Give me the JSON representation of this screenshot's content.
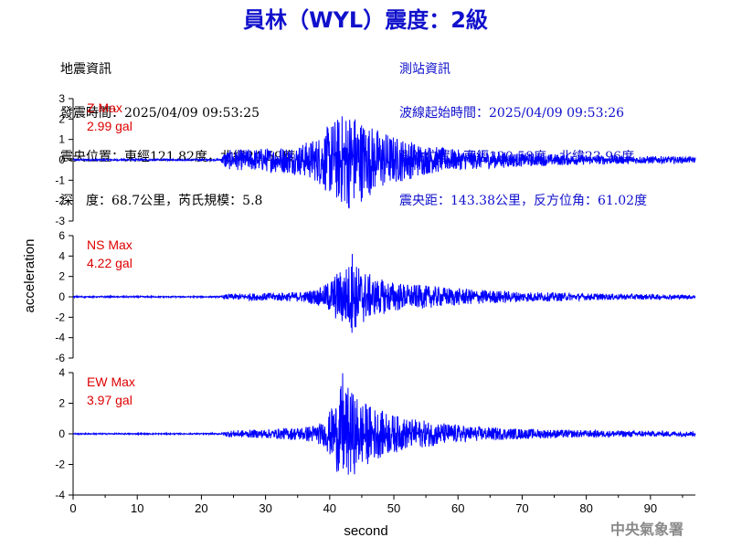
{
  "title": "員林（WYL）震度：2級",
  "earthquake": {
    "heading": "地震資訊",
    "origin_time": "發震時間：2025/04/09 09:53:25",
    "epicenter": "震央位置：東經121.82度，北緯24.59度",
    "depth_magnitude": "深　度：68.7公里，芮氏規模：5.8"
  },
  "station": {
    "heading": "測站資訊",
    "wave_start": "波線起始時間：2025/04/09 09:53:26",
    "location": "測站位置：東經120.58度，北緯23.96度",
    "distance_azimuth": "震央距：143.38公里，反方位角：61.02度"
  },
  "agency": "中央氣象署",
  "chart_data": {
    "type": "line",
    "xlabel": "second",
    "ylabel": "acceleration",
    "xlim": [
      0,
      97
    ],
    "xticks": [
      0,
      10,
      20,
      30,
      40,
      50,
      60,
      70,
      80,
      90
    ],
    "line_color": "#0000ff",
    "max_label_color": "#dd0000",
    "panels": [
      {
        "component": "Z",
        "max_label": "Z Max",
        "max_value": "2.99 gal",
        "ylim": [
          -3,
          3
        ],
        "yticks": [
          3,
          2,
          1,
          0,
          -1,
          -2,
          -3
        ],
        "envelope": [
          [
            0,
            0.05
          ],
          [
            20,
            0.05
          ],
          [
            23,
            0.05
          ],
          [
            23.6,
            0.55
          ],
          [
            30,
            0.7
          ],
          [
            35,
            0.85
          ],
          [
            38,
            1.3
          ],
          [
            40.5,
            2.3
          ],
          [
            43,
            2.99
          ],
          [
            46,
            2.1
          ],
          [
            50,
            1.4
          ],
          [
            55,
            0.85
          ],
          [
            60,
            0.6
          ],
          [
            70,
            0.4
          ],
          [
            80,
            0.28
          ],
          [
            97,
            0.18
          ]
        ]
      },
      {
        "component": "NS",
        "max_label": "NS Max",
        "max_value": "4.22 gal",
        "ylim": [
          -6,
          6
        ],
        "yticks": [
          6,
          4,
          2,
          0,
          -2,
          -4,
          -6
        ],
        "envelope": [
          [
            0,
            0.08
          ],
          [
            23,
            0.08
          ],
          [
            24,
            0.35
          ],
          [
            30,
            0.45
          ],
          [
            36,
            0.6
          ],
          [
            39,
            1.2
          ],
          [
            41,
            2.8
          ],
          [
            43.5,
            4.22
          ],
          [
            47,
            2.2
          ],
          [
            52,
            1.5
          ],
          [
            57,
            1.2
          ],
          [
            62,
            0.9
          ],
          [
            70,
            0.6
          ],
          [
            80,
            0.4
          ],
          [
            97,
            0.25
          ]
        ]
      },
      {
        "component": "EW",
        "max_label": "EW Max",
        "max_value": "3.97 gal",
        "ylim": [
          -4,
          4
        ],
        "yticks": [
          4,
          2,
          0,
          -2,
          -4
        ],
        "envelope": [
          [
            0,
            0.05
          ],
          [
            23,
            0.05
          ],
          [
            24,
            0.25
          ],
          [
            30,
            0.35
          ],
          [
            36,
            0.55
          ],
          [
            39,
            0.9
          ],
          [
            40.5,
            2.2
          ],
          [
            42,
            3.97
          ],
          [
            45,
            2.6
          ],
          [
            48,
            1.8
          ],
          [
            52,
            1.2
          ],
          [
            57,
            0.9
          ],
          [
            62,
            0.6
          ],
          [
            70,
            0.4
          ],
          [
            80,
            0.28
          ],
          [
            97,
            0.2
          ]
        ]
      }
    ]
  }
}
